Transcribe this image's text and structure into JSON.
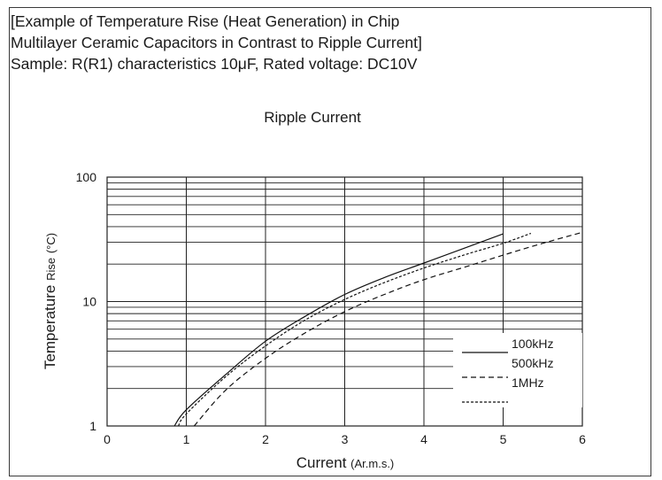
{
  "header": {
    "line1": "[Example of Temperature Rise (Heat Generation) in Chip",
    "line2": "Multilayer Ceramic Capacitors in Contrast to Ripple Current]",
    "line3": "Sample: R(R1) characteristics 10μF, Rated voltage: DC10V"
  },
  "chart_data": {
    "type": "line",
    "title": "Ripple Current",
    "xlabel_main": "Current",
    "xlabel_unit": "(Ar.m.s.)",
    "ylabel_main": "Temperature",
    "ylabel_rise": "Rise",
    "ylabel_unit": "(°C)",
    "xlim": [
      0,
      6
    ],
    "ylim": [
      1,
      100
    ],
    "y_scale": "log",
    "x_ticks": [
      "0",
      "1",
      "2",
      "3",
      "4",
      "5",
      "6"
    ],
    "y_ticks": [
      "1",
      "10",
      "100"
    ],
    "grid": true,
    "legend_position": "bottom-right",
    "series": [
      {
        "name": "100kHz",
        "style": "solid",
        "x": [
          0.85,
          1.0,
          1.5,
          2.0,
          2.5,
          3.0,
          3.5,
          4.0,
          4.5,
          5.0
        ],
        "y": [
          1.0,
          1.35,
          2.6,
          4.8,
          7.6,
          11.4,
          15.6,
          20.4,
          26.7,
          35.0
        ]
      },
      {
        "name": "500kHz",
        "style": "dashed",
        "x": [
          1.1,
          1.5,
          2.0,
          2.5,
          3.0,
          3.5,
          4.0,
          4.5,
          5.0,
          5.5,
          6.0
        ],
        "y": [
          1.0,
          1.95,
          3.5,
          5.6,
          8.3,
          11.4,
          15.0,
          18.8,
          23.6,
          29.4,
          36.0
        ]
      },
      {
        "name": "1MHz",
        "style": "dotted",
        "x": [
          0.9,
          1.0,
          1.5,
          2.0,
          2.5,
          3.0,
          3.5,
          4.0,
          4.5,
          5.0,
          5.35
        ],
        "y": [
          1.0,
          1.25,
          2.5,
          4.4,
          7.1,
          10.4,
          14.2,
          18.6,
          23.6,
          29.4,
          35.3
        ]
      }
    ]
  }
}
